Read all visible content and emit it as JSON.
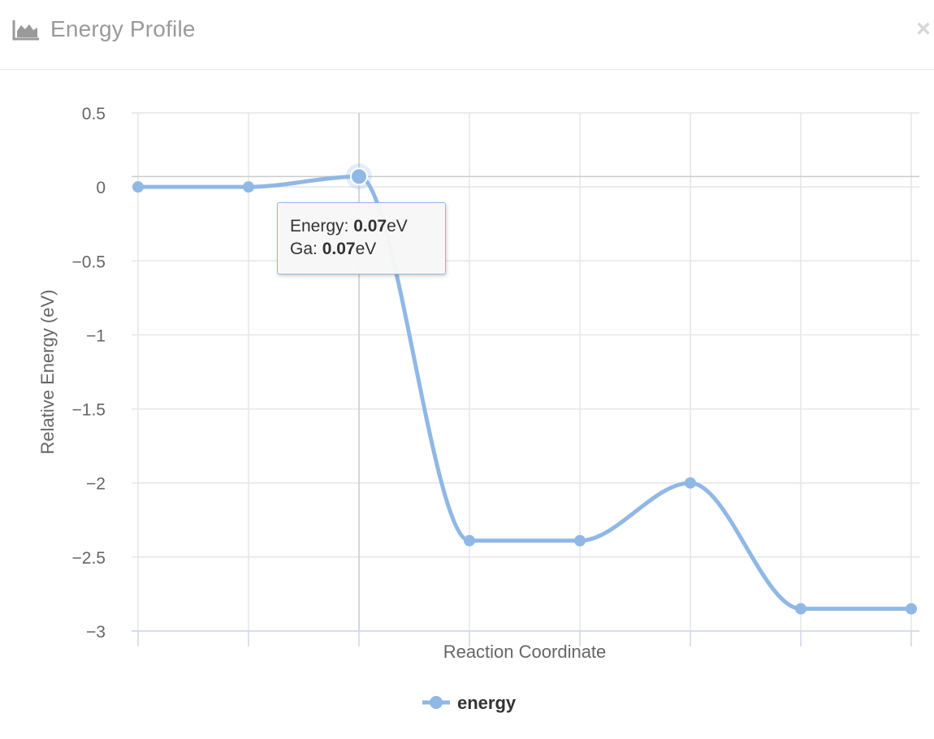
{
  "modal": {
    "title": "Energy Profile",
    "title_icon": "area-chart-icon",
    "close_label": "×",
    "close_icon": "close-icon"
  },
  "chart_data": {
    "type": "line",
    "smooth": true,
    "xlabel": "Reaction Coordinate",
    "ylabel": "Relative Energy (eV)",
    "ylim": [
      -3,
      0.5
    ],
    "y_ticks": [
      0.5,
      0,
      -0.5,
      -1,
      -1.5,
      -2,
      -2.5,
      -3
    ],
    "y_tick_labels": [
      "0.5",
      "0",
      "−0.5",
      "−1",
      "−1.5",
      "−2",
      "−2.5",
      "−3"
    ],
    "x": [
      0,
      1,
      2,
      3,
      4,
      5,
      6,
      7
    ],
    "series": [
      {
        "name": "energy",
        "values": [
          0,
          0,
          0.07,
          -2.39,
          -2.39,
          -2,
          -2.85,
          -2.85
        ]
      }
    ],
    "legend": {
      "position": "bottom-center",
      "entries": [
        "energy"
      ]
    },
    "grid": true,
    "colors": {
      "series": "#90b8e6",
      "grid": "#e6e6e6",
      "axis": "#ccd6eb",
      "crosshair": "#cccccc",
      "text": "#666666"
    },
    "highlight_index": 2,
    "tooltip": {
      "line1_label": "Energy: ",
      "line1_value": "0.07",
      "line1_unit": "eV",
      "line2_label": "Ga: ",
      "line2_value": "0.07",
      "line2_unit": "eV"
    }
  }
}
